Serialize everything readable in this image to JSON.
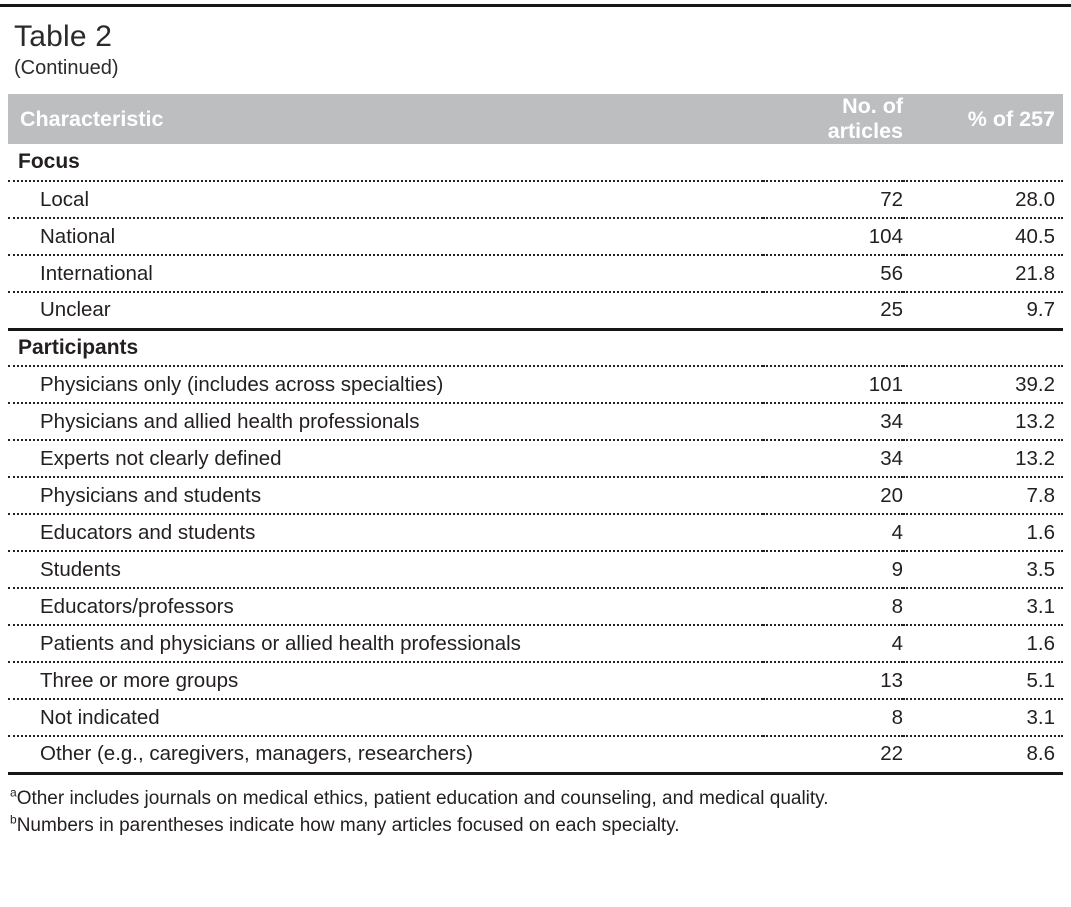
{
  "table": {
    "title": "Table 2",
    "subtitle": "(Continued)",
    "columns": [
      "Characteristic",
      "No. of articles",
      "% of 257"
    ],
    "sections": [
      {
        "label": "Focus",
        "rows": [
          {
            "label": "Local",
            "n": "72",
            "pct": "28.0"
          },
          {
            "label": "National",
            "n": "104",
            "pct": "40.5"
          },
          {
            "label": "International",
            "n": "56",
            "pct": "21.8"
          },
          {
            "label": "Unclear",
            "n": "25",
            "pct": "9.7"
          }
        ]
      },
      {
        "label": "Participants",
        "rows": [
          {
            "label": "Physicians only (includes across specialties)",
            "n": "101",
            "pct": "39.2"
          },
          {
            "label": "Physicians and allied health professionals",
            "n": "34",
            "pct": "13.2"
          },
          {
            "label": "Experts not clearly defined",
            "n": "34",
            "pct": "13.2"
          },
          {
            "label": "Physicians and students",
            "n": "20",
            "pct": "7.8"
          },
          {
            "label": "Educators and students",
            "n": "4",
            "pct": "1.6"
          },
          {
            "label": "Students",
            "n": "9",
            "pct": "3.5"
          },
          {
            "label": "Educators/professors",
            "n": "8",
            "pct": "3.1"
          },
          {
            "label": "Patients and physicians or allied health professionals",
            "n": "4",
            "pct": "1.6"
          },
          {
            "label": "Three or more groups",
            "n": "13",
            "pct": "5.1"
          },
          {
            "label": "Not indicated",
            "n": "8",
            "pct": "3.1"
          },
          {
            "label": "Other (e.g., caregivers, managers, researchers)",
            "n": "22",
            "pct": "8.6"
          }
        ]
      }
    ],
    "footnotes": [
      {
        "marker": "a",
        "text": "Other includes journals on medical ethics, patient education and counseling, and medical quality."
      },
      {
        "marker": "b",
        "text": "Numbers in parentheses indicate how many articles focused on each specialty."
      }
    ],
    "colors": {
      "header_bg": "#bcbec0",
      "header_text": "#ffffff",
      "body_text": "#231f20",
      "rule": "#161616"
    }
  }
}
